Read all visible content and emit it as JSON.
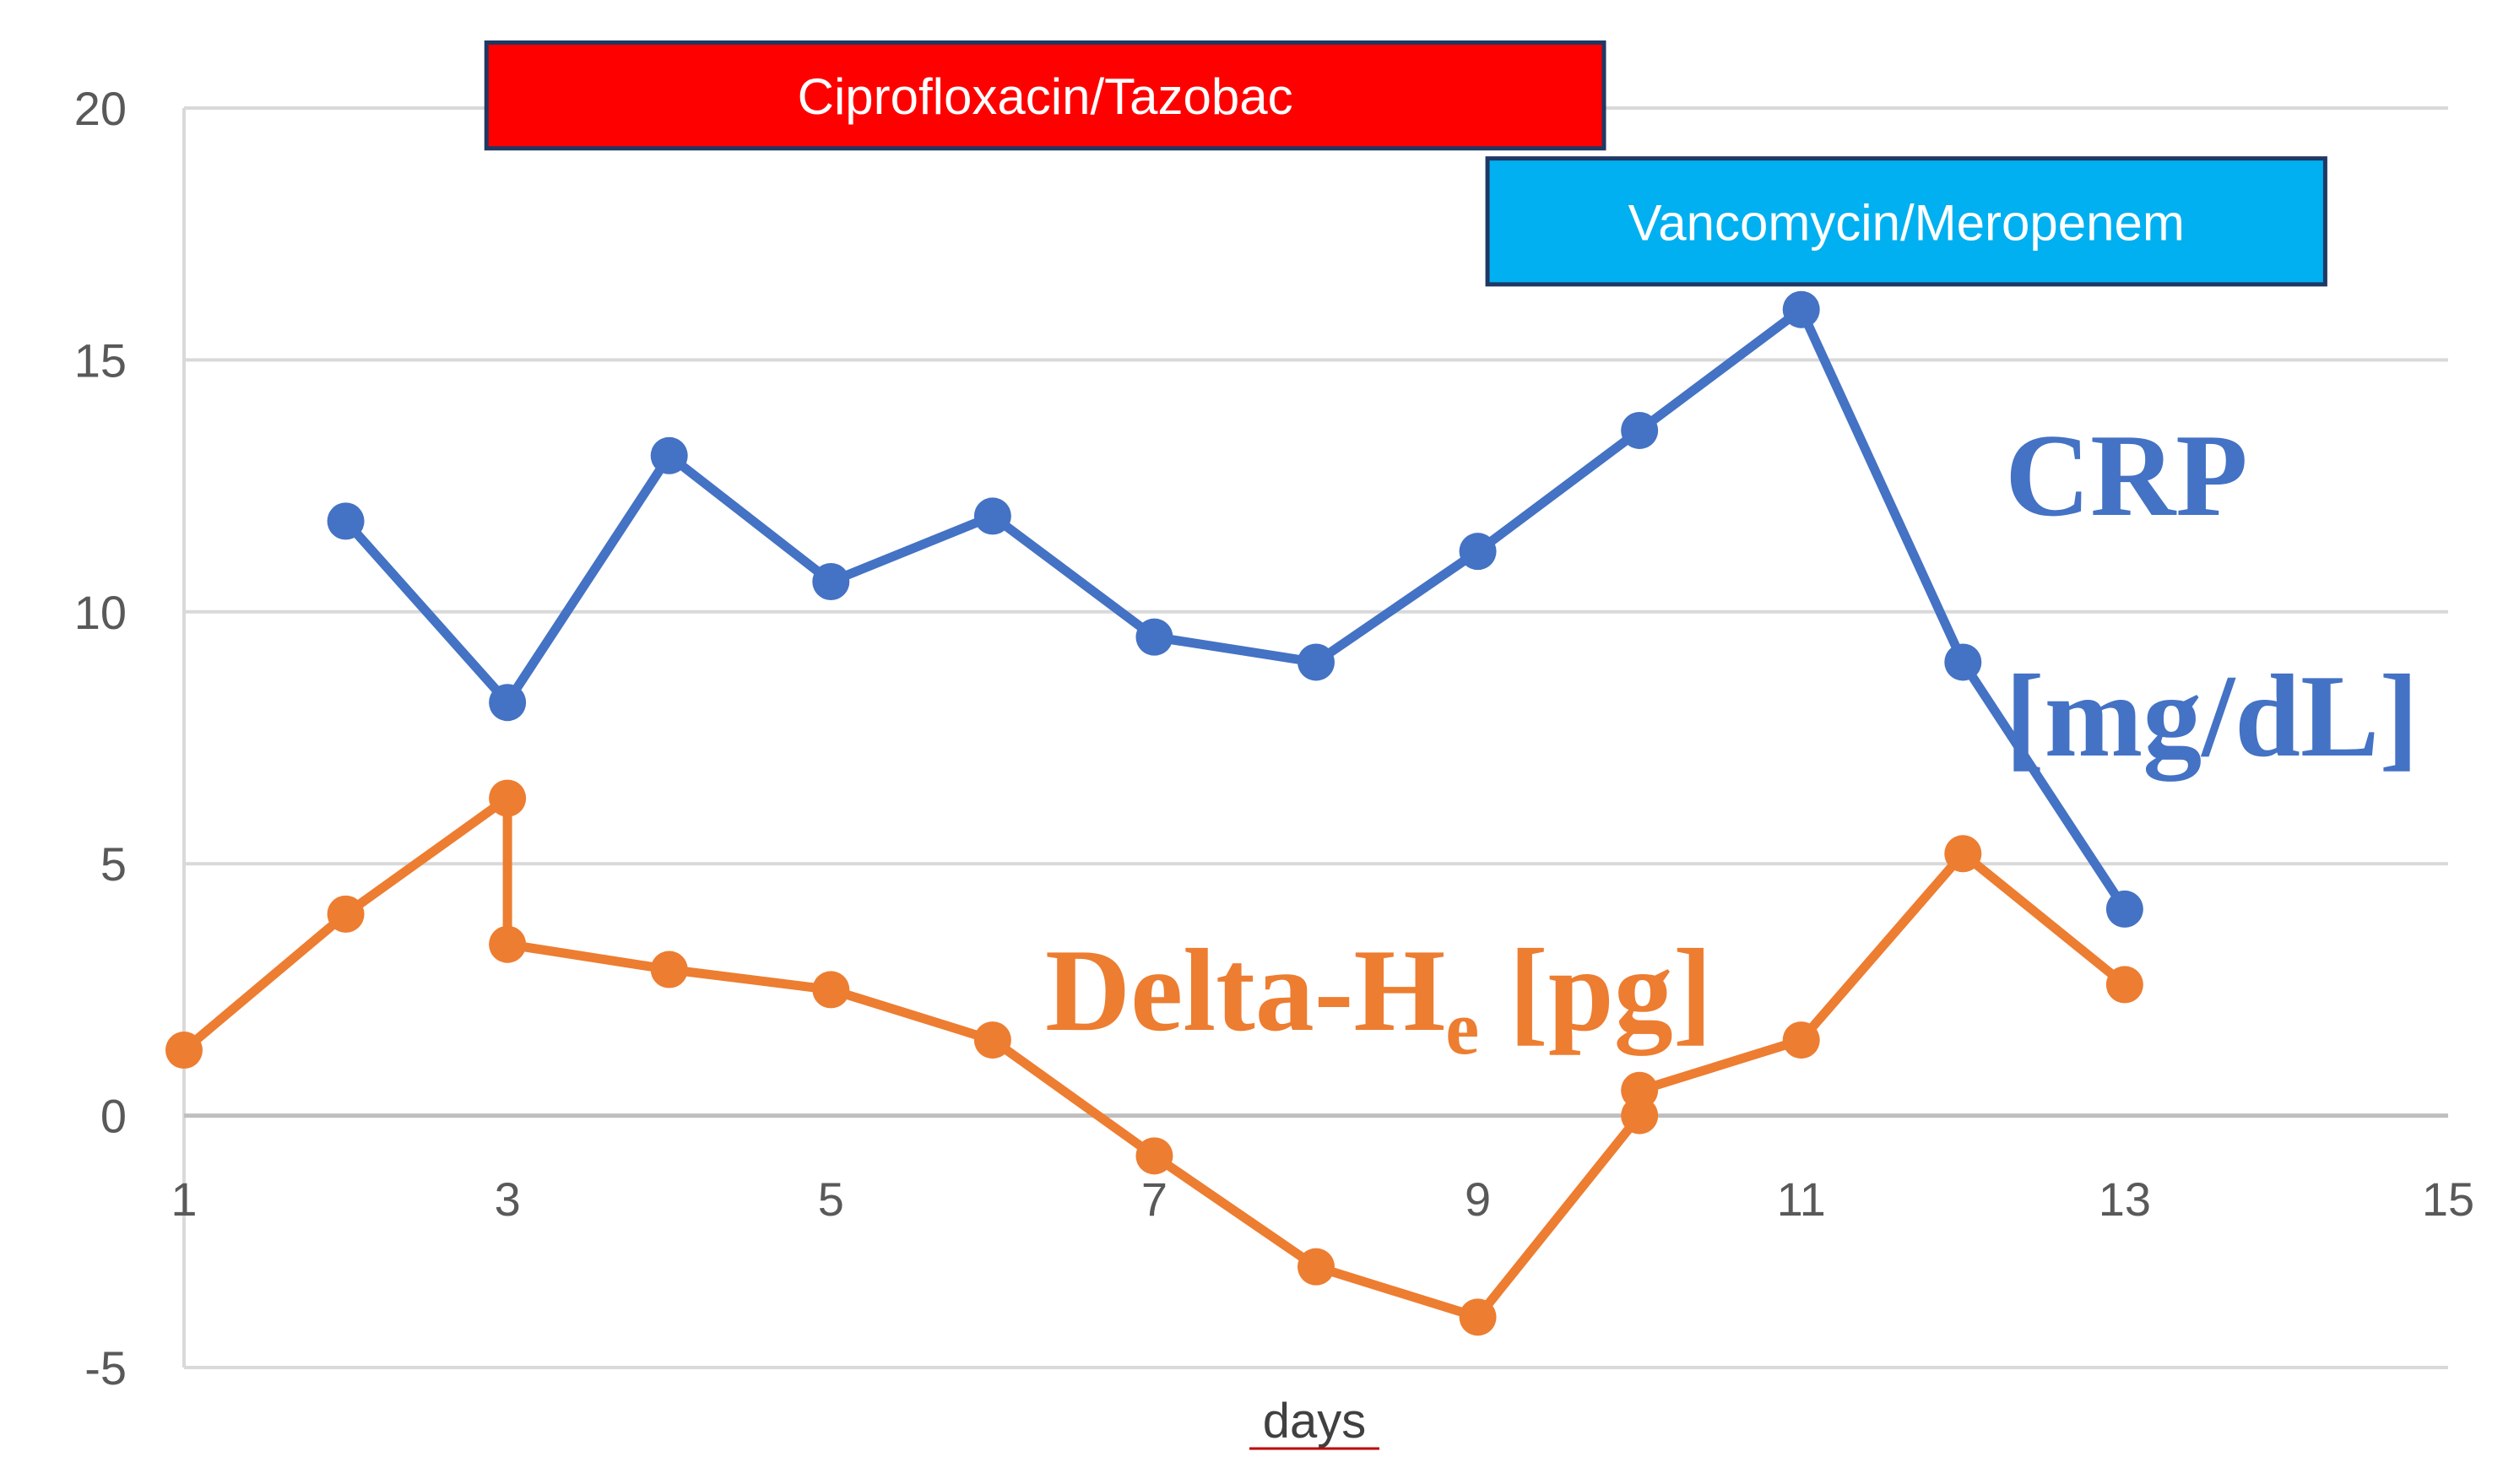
{
  "chart_data": {
    "type": "line",
    "xlabel": "days",
    "ylabel": "",
    "xlim": [
      1,
      15
    ],
    "ylim": [
      -5,
      20
    ],
    "xticks": [
      "1",
      "3",
      "5",
      "7",
      "9",
      "11",
      "13",
      "15"
    ],
    "yticks": [
      "-5",
      "0",
      "5",
      "10",
      "15",
      "20"
    ],
    "grid": "horizontal",
    "series": [
      {
        "name": "CRP [mg/dL]",
        "color": "#4472C4",
        "points": [
          [
            2,
            11.8
          ],
          [
            3,
            8.2
          ],
          [
            4,
            13.1
          ],
          [
            5,
            10.6
          ],
          [
            6,
            11.9
          ],
          [
            7,
            9.5
          ],
          [
            8,
            9.0
          ],
          [
            9,
            11.2
          ],
          [
            10,
            13.6
          ],
          [
            11,
            16.0
          ],
          [
            12,
            9.0
          ],
          [
            13,
            4.1
          ]
        ]
      },
      {
        "name": "Delta-He [pg]",
        "color": "#ED7D31",
        "points": [
          [
            1,
            1.3
          ],
          [
            2,
            4.0
          ],
          [
            3,
            6.3
          ],
          [
            3,
            3.4
          ],
          [
            4,
            2.9
          ],
          [
            5,
            2.5
          ],
          [
            6,
            1.5
          ],
          [
            7,
            -0.8
          ],
          [
            8,
            -3.0
          ],
          [
            9,
            -4.0
          ],
          [
            10,
            0.0
          ],
          [
            10,
            0.5
          ],
          [
            11,
            1.5
          ],
          [
            12,
            5.2
          ],
          [
            13,
            2.6
          ]
        ]
      }
    ],
    "labels": {
      "crp_line1": "CRP",
      "crp_line2": "[mg/dL]",
      "delta_main": "Delta-H",
      "delta_sub": "e",
      "delta_unit": " [pg]"
    },
    "treatments": [
      {
        "label": "Ciprofloxacin/Tazobac",
        "start": 2.87,
        "end": 9.78,
        "color": "#FF0000",
        "text_color": "#FFFFFF",
        "border": "#1F3864",
        "y_top": 21.3,
        "y_bottom": 19.2
      },
      {
        "label": "Vancomycin/Meropenem",
        "start": 9.06,
        "end": 14.24,
        "color": "#00B0F0",
        "text_color": "#FFFFFF",
        "border": "#1F3864",
        "y_top": 19.0,
        "y_bottom": 16.5
      }
    ]
  }
}
